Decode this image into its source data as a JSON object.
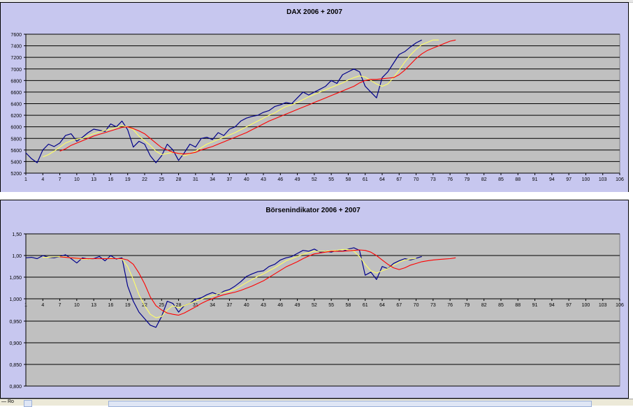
{
  "status": {
    "text": "— Ro"
  },
  "chart_data": [
    {
      "type": "line",
      "title": "DAX 2006 + 2007",
      "ylim": [
        5200,
        7600
      ],
      "yticks": [
        "5200",
        "5400",
        "5600",
        "5800",
        "6000",
        "6200",
        "6400",
        "6600",
        "6800",
        "7000",
        "7200",
        "7400",
        "7600"
      ],
      "xlim": [
        1,
        106
      ],
      "xticks": [
        "1",
        "4",
        "7",
        "10",
        "13",
        "16",
        "19",
        "22",
        "25",
        "28",
        "31",
        "34",
        "37",
        "40",
        "43",
        "46",
        "49",
        "52",
        "55",
        "58",
        "61",
        "64",
        "67",
        "70",
        "73",
        "76",
        "79",
        "82",
        "85",
        "88",
        "91",
        "94",
        "97",
        "100",
        "103",
        "106"
      ],
      "grid": true,
      "legend": "none",
      "plot_background": "#c0c0c0",
      "chart_background": "#c7c7ef",
      "series": [
        {
          "color": "#00008b",
          "x": [
            1,
            2,
            3,
            4,
            5,
            6,
            7,
            8,
            9,
            10,
            11,
            12,
            13,
            14,
            15,
            16,
            17,
            18,
            19,
            20,
            21,
            22,
            23,
            24,
            25,
            26,
            27,
            28,
            29,
            30,
            31,
            32,
            33,
            34,
            35,
            36,
            37,
            38,
            39,
            40,
            41,
            42,
            43,
            44,
            45,
            46,
            47,
            48,
            49,
            50,
            51,
            52,
            53,
            54,
            55,
            56,
            57,
            58,
            59,
            60,
            61,
            62,
            63,
            64,
            65,
            66,
            67,
            68,
            69,
            70,
            71
          ],
          "values": [
            5550,
            5450,
            5380,
            5600,
            5700,
            5660,
            5720,
            5850,
            5880,
            5750,
            5820,
            5900,
            5960,
            5940,
            5920,
            6050,
            6000,
            6100,
            5950,
            5650,
            5750,
            5700,
            5500,
            5380,
            5500,
            5700,
            5600,
            5420,
            5550,
            5700,
            5650,
            5800,
            5820,
            5780,
            5900,
            5850,
            5960,
            6000,
            6100,
            6150,
            6180,
            6200,
            6250,
            6280,
            6350,
            6380,
            6420,
            6400,
            6500,
            6600,
            6550,
            6600,
            6650,
            6700,
            6800,
            6750,
            6900,
            6950,
            7000,
            6950,
            6700,
            6600,
            6500,
            6850,
            6950,
            7100,
            7250,
            7300,
            7380,
            7450,
            7500
          ]
        },
        {
          "color": "#ffff66",
          "x": [
            4,
            5,
            6,
            7,
            8,
            9,
            10,
            11,
            12,
            13,
            14,
            15,
            16,
            17,
            18,
            19,
            20,
            21,
            22,
            23,
            24,
            25,
            26,
            27,
            28,
            29,
            30,
            31,
            32,
            33,
            34,
            35,
            36,
            37,
            38,
            39,
            40,
            41,
            42,
            43,
            44,
            45,
            46,
            47,
            48,
            49,
            50,
            51,
            52,
            53,
            54,
            55,
            56,
            57,
            58,
            59,
            60,
            61,
            62,
            63,
            64,
            65,
            66,
            67,
            68,
            69,
            70,
            71,
            72,
            73,
            74
          ],
          "values": [
            5480,
            5520,
            5580,
            5650,
            5720,
            5760,
            5790,
            5800,
            5840,
            5880,
            5910,
            5940,
            5960,
            5990,
            6020,
            6000,
            5950,
            5840,
            5760,
            5680,
            5580,
            5520,
            5540,
            5560,
            5540,
            5500,
            5530,
            5580,
            5640,
            5700,
            5740,
            5780,
            5820,
            5860,
            5900,
            5950,
            6000,
            6050,
            6100,
            6150,
            6200,
            6240,
            6300,
            6350,
            6380,
            6420,
            6470,
            6520,
            6560,
            6600,
            6640,
            6680,
            6720,
            6760,
            6810,
            6850,
            6880,
            6860,
            6800,
            6740,
            6700,
            6740,
            6850,
            6980,
            7120,
            7240,
            7340,
            7420,
            7460,
            7500,
            7500
          ]
        },
        {
          "color": "#ff0000",
          "x": [
            7,
            8,
            9,
            10,
            11,
            12,
            13,
            14,
            15,
            16,
            17,
            18,
            19,
            20,
            21,
            22,
            23,
            24,
            25,
            26,
            27,
            28,
            29,
            30,
            31,
            32,
            33,
            34,
            35,
            36,
            37,
            38,
            39,
            40,
            41,
            42,
            43,
            44,
            45,
            46,
            47,
            48,
            49,
            50,
            51,
            52,
            53,
            54,
            55,
            56,
            57,
            58,
            59,
            60,
            61,
            62,
            63,
            64,
            65,
            66,
            67,
            68,
            69,
            70,
            71,
            72,
            73,
            74,
            75,
            76,
            77
          ],
          "values": [
            5580,
            5620,
            5680,
            5720,
            5760,
            5800,
            5840,
            5870,
            5900,
            5930,
            5960,
            5990,
            6000,
            5970,
            5930,
            5880,
            5800,
            5720,
            5640,
            5600,
            5560,
            5540,
            5530,
            5540,
            5560,
            5600,
            5630,
            5660,
            5700,
            5740,
            5780,
            5820,
            5860,
            5900,
            5950,
            6000,
            6050,
            6100,
            6140,
            6180,
            6220,
            6260,
            6300,
            6340,
            6380,
            6420,
            6460,
            6500,
            6540,
            6580,
            6620,
            6660,
            6700,
            6760,
            6800,
            6820,
            6820,
            6830,
            6840,
            6850,
            6900,
            6980,
            7080,
            7180,
            7260,
            7320,
            7360,
            7400,
            7440,
            7480,
            7500
          ]
        }
      ]
    },
    {
      "type": "line",
      "title": "Börsenindikator 2006 + 2007",
      "ylim": [
        0.8,
        1.15
      ],
      "yticks": [
        "0,800",
        "0,850",
        "0,900",
        "0,950",
        "1,000",
        "1,050",
        "1,00",
        "1,50"
      ],
      "xlim": [
        1,
        106
      ],
      "xticks": [
        "1",
        "4",
        "7",
        "10",
        "13",
        "16",
        "19",
        "22",
        "25",
        "28",
        "31",
        "34",
        "37",
        "40",
        "43",
        "46",
        "49",
        "52",
        "55",
        "58",
        "61",
        "64",
        "67",
        "70",
        "73",
        "76",
        "79",
        "82",
        "85",
        "88",
        "91",
        "94",
        "97",
        "100",
        "103",
        "106"
      ],
      "grid": true,
      "legend": "none",
      "plot_background": "#c0c0c0",
      "chart_background": "#c7c7ef",
      "series": [
        {
          "color": "#00008b",
          "x": [
            1,
            2,
            3,
            4,
            5,
            6,
            7,
            8,
            9,
            10,
            11,
            12,
            13,
            14,
            15,
            16,
            17,
            18,
            19,
            20,
            21,
            22,
            23,
            24,
            25,
            26,
            27,
            28,
            29,
            30,
            31,
            32,
            33,
            34,
            35,
            36,
            37,
            38,
            39,
            40,
            41,
            42,
            43,
            44,
            45,
            46,
            47,
            48,
            49,
            50,
            51,
            52,
            53,
            54,
            55,
            56,
            57,
            58,
            59,
            60,
            61,
            62,
            63,
            64,
            65,
            66,
            67,
            68,
            69,
            70,
            71
          ],
          "values": [
            1.095,
            1.096,
            1.093,
            1.1,
            1.096,
            1.095,
            1.098,
            1.102,
            1.093,
            1.083,
            1.095,
            1.092,
            1.093,
            1.098,
            1.088,
            1.1,
            1.092,
            1.095,
            1.03,
            0.995,
            0.97,
            0.955,
            0.94,
            0.935,
            0.96,
            0.995,
            0.99,
            0.97,
            0.985,
            0.99,
            1.0,
            1.003,
            1.01,
            1.015,
            1.01,
            1.018,
            1.022,
            1.03,
            1.04,
            1.052,
            1.058,
            1.063,
            1.065,
            1.075,
            1.08,
            1.09,
            1.095,
            1.098,
            1.105,
            1.112,
            1.11,
            1.115,
            1.108,
            1.11,
            1.108,
            1.112,
            1.11,
            1.115,
            1.118,
            1.112,
            1.055,
            1.062,
            1.045,
            1.075,
            1.07,
            1.082,
            1.088,
            1.093,
            1.09,
            1.094,
            1.098
          ]
        },
        {
          "color": "#ffff66",
          "x": [
            4,
            5,
            6,
            7,
            8,
            9,
            10,
            11,
            12,
            13,
            14,
            15,
            16,
            17,
            18,
            19,
            20,
            21,
            22,
            23,
            24,
            25,
            26,
            27,
            28,
            29,
            30,
            31,
            32,
            33,
            34,
            35,
            36,
            37,
            38,
            39,
            40,
            41,
            42,
            43,
            44,
            45,
            46,
            47,
            48,
            49,
            50,
            51,
            52,
            53,
            54,
            55,
            56,
            57,
            58,
            59,
            60,
            61,
            62,
            63,
            64,
            65,
            66,
            67,
            68,
            69,
            70
          ],
          "values": [
            1.096,
            1.096,
            1.097,
            1.098,
            1.097,
            1.095,
            1.093,
            1.092,
            1.092,
            1.093,
            1.093,
            1.093,
            1.094,
            1.093,
            1.092,
            1.075,
            1.045,
            1.01,
            0.985,
            0.965,
            0.957,
            0.96,
            0.975,
            0.985,
            0.98,
            0.985,
            0.99,
            0.995,
            1.0,
            1.004,
            1.008,
            1.012,
            1.015,
            1.018,
            1.023,
            1.03,
            1.038,
            1.045,
            1.052,
            1.058,
            1.065,
            1.072,
            1.08,
            1.088,
            1.093,
            1.098,
            1.103,
            1.107,
            1.11,
            1.11,
            1.11,
            1.111,
            1.112,
            1.114,
            1.114,
            1.11,
            1.098,
            1.08,
            1.065,
            1.06,
            1.065,
            1.07,
            1.078,
            1.085,
            1.09,
            1.092,
            1.094
          ]
        },
        {
          "color": "#ff0000",
          "x": [
            7,
            8,
            9,
            10,
            11,
            12,
            13,
            14,
            15,
            16,
            17,
            18,
            19,
            20,
            21,
            22,
            23,
            24,
            25,
            26,
            27,
            28,
            29,
            30,
            31,
            32,
            33,
            34,
            35,
            36,
            37,
            38,
            39,
            40,
            41,
            42,
            43,
            44,
            45,
            46,
            47,
            48,
            49,
            50,
            51,
            52,
            53,
            54,
            55,
            56,
            57,
            58,
            59,
            60,
            61,
            62,
            63,
            64,
            65,
            66,
            67,
            68,
            69,
            70,
            71,
            72,
            73,
            74,
            75,
            76,
            77
          ],
          "values": [
            1.097,
            1.096,
            1.095,
            1.094,
            1.093,
            1.093,
            1.093,
            1.093,
            1.093,
            1.093,
            1.093,
            1.093,
            1.09,
            1.08,
            1.06,
            1.035,
            1.005,
            0.985,
            0.975,
            0.968,
            0.965,
            0.963,
            0.968,
            0.975,
            0.982,
            0.99,
            0.996,
            1.001,
            1.006,
            1.01,
            1.013,
            1.016,
            1.02,
            1.025,
            1.03,
            1.036,
            1.042,
            1.05,
            1.058,
            1.066,
            1.074,
            1.08,
            1.086,
            1.093,
            1.099,
            1.104,
            1.106,
            1.108,
            1.11,
            1.11,
            1.11,
            1.111,
            1.112,
            1.113,
            1.112,
            1.108,
            1.1,
            1.09,
            1.08,
            1.072,
            1.068,
            1.072,
            1.078,
            1.082,
            1.086,
            1.088,
            1.09,
            1.091,
            1.092,
            1.093,
            1.095
          ]
        }
      ]
    }
  ]
}
